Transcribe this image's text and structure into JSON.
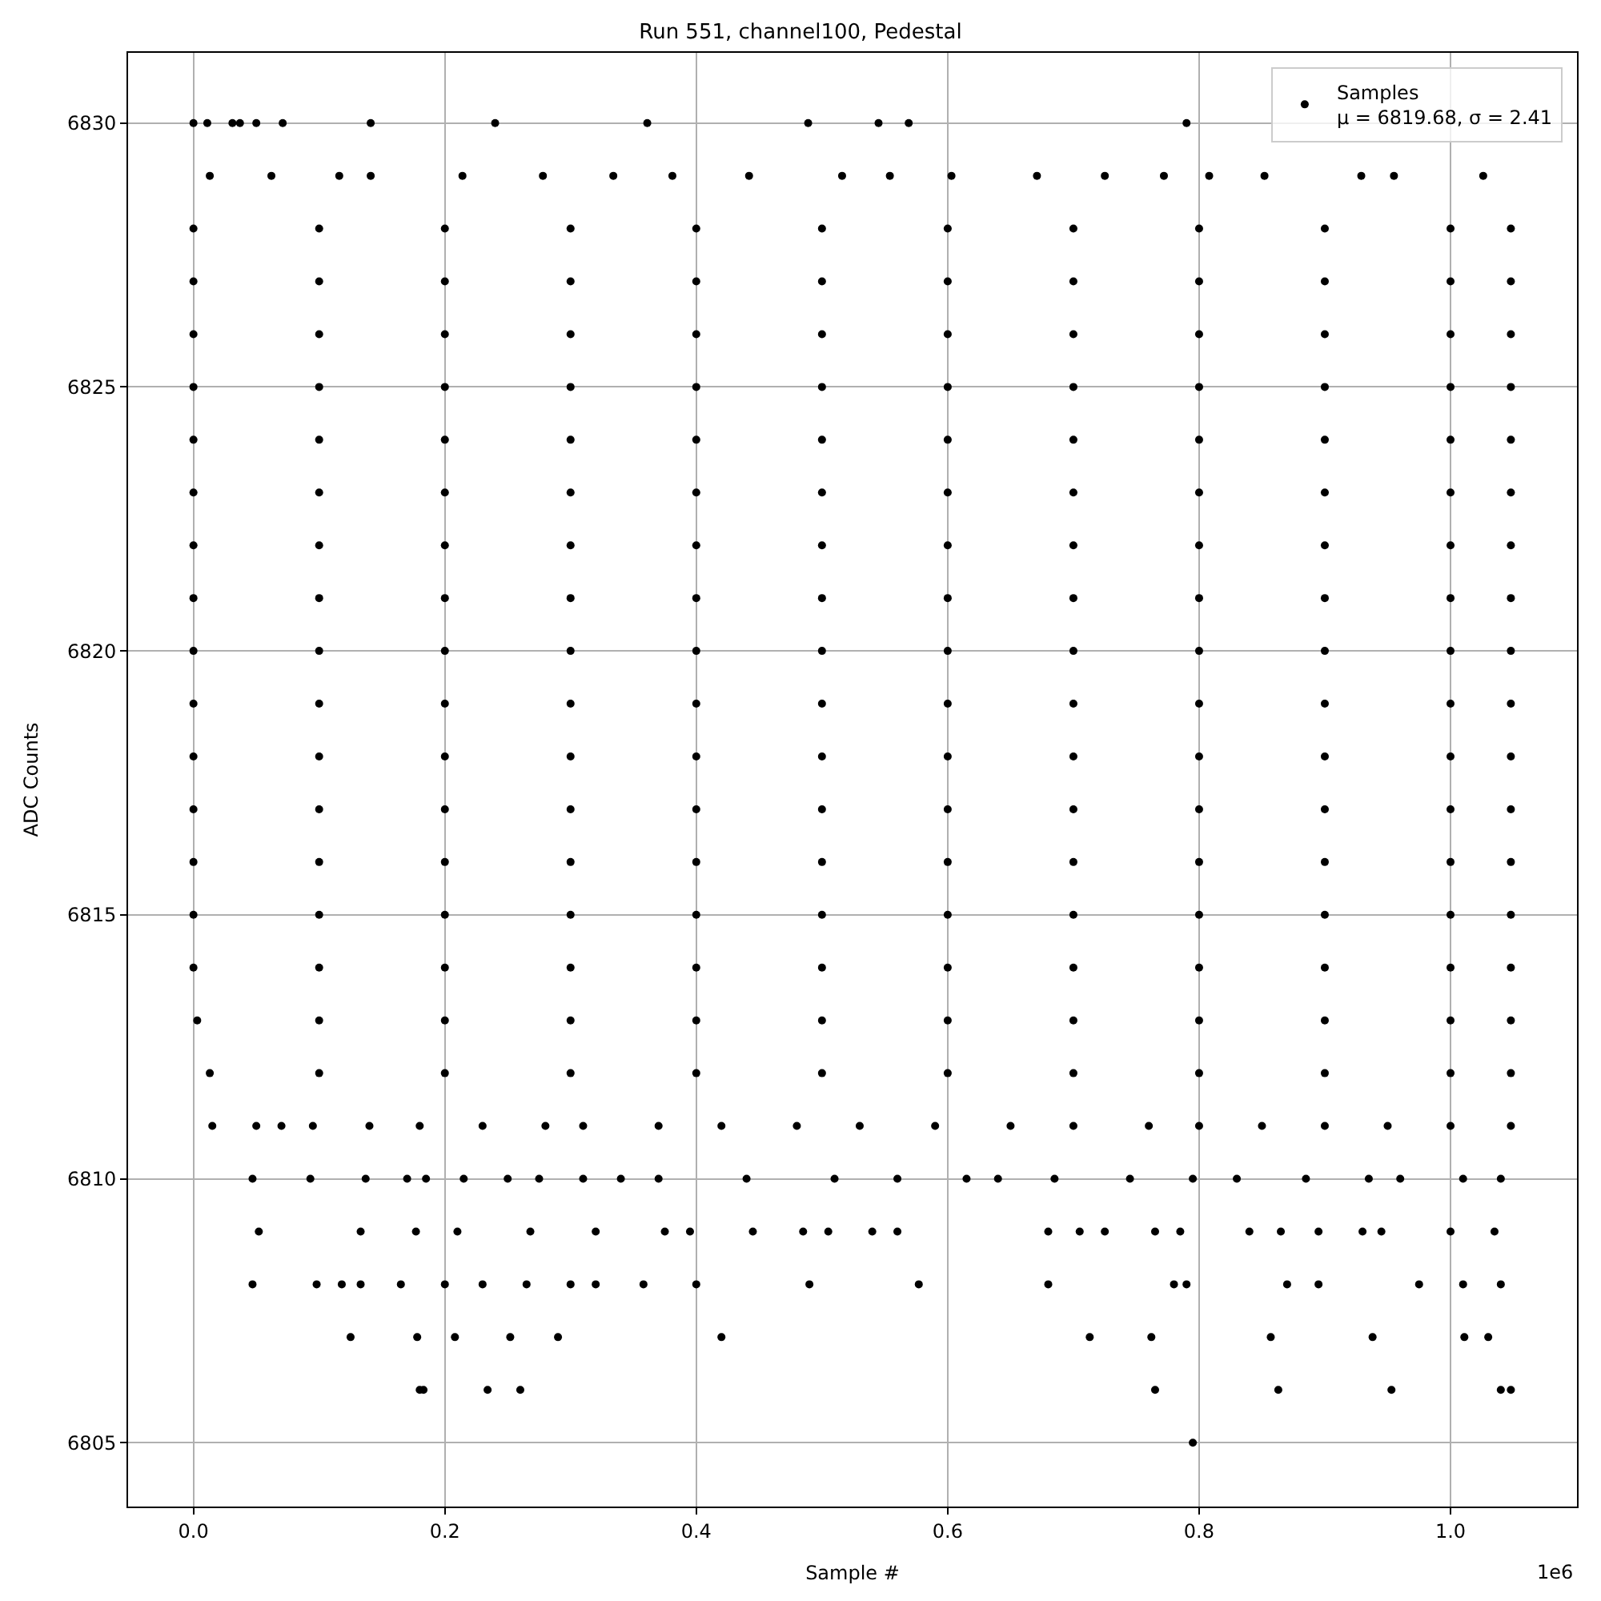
{
  "chart_data": {
    "type": "scatter",
    "title": "Run 551, channel100, Pedestal",
    "xlabel": "Sample #",
    "ylabel": "ADC Counts",
    "annotations": [
      "1e6"
    ],
    "xlim": [
      -0.052,
      1.1006
    ],
    "ylim": [
      6803.79,
      6831.33
    ],
    "xticks": [
      {
        "value": 0,
        "label": "0.0"
      },
      0.2,
      0.4,
      0.6,
      0.8,
      {
        "value": 1,
        "label": "1.0"
      }
    ],
    "yticks": [
      6805,
      6810,
      6815,
      6820,
      6825,
      6830
    ],
    "grid": true,
    "legend": "top right",
    "marker": "circle",
    "series": [
      {
        "name": "Samples\nμ = 6819.68, σ = 2.41",
        "color": "#000000",
        "x": [
          0,
          0.011,
          0.031,
          0.037,
          0.05,
          0.071,
          0.141,
          0.24,
          0.361,
          0.489,
          0.545,
          0.569,
          0.79,
          0.013,
          0.062,
          0.116,
          0.141,
          0.214,
          0.278,
          0.334,
          0.381,
          0.442,
          0.516,
          0.554,
          0.603,
          0.671,
          0.725,
          0.772,
          0.808,
          0.852,
          0.929,
          0.955,
          1.026,
          0,
          0.1,
          0.2,
          0.3,
          0.4,
          0.5,
          0.6,
          0.7,
          0.8,
          0.9,
          1,
          1.048,
          0,
          0.1,
          0.2,
          0.3,
          0.4,
          0.5,
          0.6,
          0.7,
          0.8,
          0.9,
          1,
          1.048,
          0,
          0.1,
          0.2,
          0.3,
          0.4,
          0.5,
          0.6,
          0.7,
          0.8,
          0.9,
          1,
          1.048,
          0,
          0.1,
          0.2,
          0.3,
          0.4,
          0.5,
          0.6,
          0.7,
          0.8,
          0.9,
          1,
          1.048,
          0,
          0.1,
          0.2,
          0.3,
          0.4,
          0.5,
          0.6,
          0.7,
          0.8,
          0.9,
          1,
          1.048,
          0,
          0.1,
          0.2,
          0.3,
          0.4,
          0.5,
          0.6,
          0.7,
          0.8,
          0.9,
          1,
          1.048,
          0,
          0.1,
          0.2,
          0.3,
          0.4,
          0.5,
          0.6,
          0.7,
          0.8,
          0.9,
          1,
          1.048,
          0,
          0.1,
          0.2,
          0.3,
          0.4,
          0.5,
          0.6,
          0.7,
          0.8,
          0.9,
          1,
          1.048,
          0,
          0.1,
          0.2,
          0.3,
          0.4,
          0.5,
          0.6,
          0.7,
          0.8,
          0.9,
          1,
          1.048,
          0,
          0.1,
          0.2,
          0.3,
          0.4,
          0.5,
          0.6,
          0.7,
          0.8,
          0.9,
          1,
          1.048,
          0,
          0.1,
          0.2,
          0.3,
          0.4,
          0.5,
          0.6,
          0.7,
          0.8,
          0.9,
          1,
          1.048,
          0,
          0.1,
          0.2,
          0.3,
          0.4,
          0.5,
          0.6,
          0.7,
          0.8,
          0.9,
          1,
          1.048,
          0,
          0.1,
          0.2,
          0.3,
          0.4,
          0.5,
          0.6,
          0.7,
          0.8,
          0.9,
          1,
          1.048,
          0,
          0.1,
          0.2,
          0.3,
          0.4,
          0.5,
          0.6,
          0.7,
          0.8,
          0.9,
          1,
          1.048,
          0,
          0.1,
          0.2,
          0.3,
          0.4,
          0.5,
          0.6,
          0.7,
          0.8,
          0.9,
          1,
          1.048,
          0.003,
          0.1,
          0.2,
          0.3,
          0.4,
          0.5,
          0.6,
          0.7,
          0.8,
          0.9,
          1,
          1.048,
          0.013,
          0.1,
          0.2,
          0.3,
          0.4,
          0.5,
          0.6,
          0.7,
          0.8,
          0.9,
          1,
          1.048,
          0.015,
          0.05,
          0.07,
          0.095,
          0.14,
          0.18,
          0.23,
          0.28,
          0.31,
          0.37,
          0.42,
          0.48,
          0.53,
          0.59,
          0.65,
          0.7,
          0.76,
          0.8,
          0.85,
          0.9,
          0.95,
          1,
          1.048,
          0.047,
          0.093,
          0.137,
          0.17,
          0.185,
          0.215,
          0.25,
          0.275,
          0.31,
          0.34,
          0.37,
          0.44,
          0.51,
          0.56,
          0.615,
          0.64,
          0.685,
          0.745,
          0.795,
          0.83,
          0.885,
          0.935,
          0.96,
          1.01,
          1.04,
          0.052,
          0.133,
          0.177,
          0.21,
          0.268,
          0.32,
          0.375,
          0.395,
          0.445,
          0.485,
          0.505,
          0.54,
          0.56,
          0.68,
          0.705,
          0.725,
          0.765,
          0.785,
          0.84,
          0.865,
          0.895,
          0.93,
          0.945,
          1,
          1.035,
          0.047,
          0.098,
          0.118,
          0.133,
          0.165,
          0.2,
          0.23,
          0.265,
          0.3,
          0.32,
          0.358,
          0.4,
          0.49,
          0.577,
          0.68,
          0.78,
          0.79,
          0.87,
          0.895,
          0.975,
          1.01,
          1.04,
          0.125,
          0.178,
          0.208,
          0.252,
          0.29,
          0.42,
          0.713,
          0.762,
          0.857,
          0.938,
          1.011,
          1.03,
          0.18,
          0.183,
          0.234,
          0.26,
          0.765,
          0.863,
          0.953,
          1.04,
          1.048,
          0.795
        ],
        "values": [
          6830,
          6830,
          6830,
          6830,
          6830,
          6830,
          6830,
          6830,
          6830,
          6830,
          6830,
          6830,
          6830,
          6829,
          6829,
          6829,
          6829,
          6829,
          6829,
          6829,
          6829,
          6829,
          6829,
          6829,
          6829,
          6829,
          6829,
          6829,
          6829,
          6829,
          6829,
          6829,
          6829,
          6828,
          6828,
          6828,
          6828,
          6828,
          6828,
          6828,
          6828,
          6828,
          6828,
          6828,
          6828,
          6827,
          6827,
          6827,
          6827,
          6827,
          6827,
          6827,
          6827,
          6827,
          6827,
          6827,
          6827,
          6826,
          6826,
          6826,
          6826,
          6826,
          6826,
          6826,
          6826,
          6826,
          6826,
          6826,
          6826,
          6825,
          6825,
          6825,
          6825,
          6825,
          6825,
          6825,
          6825,
          6825,
          6825,
          6825,
          6825,
          6824,
          6824,
          6824,
          6824,
          6824,
          6824,
          6824,
          6824,
          6824,
          6824,
          6824,
          6824,
          6823,
          6823,
          6823,
          6823,
          6823,
          6823,
          6823,
          6823,
          6823,
          6823,
          6823,
          6823,
          6822,
          6822,
          6822,
          6822,
          6822,
          6822,
          6822,
          6822,
          6822,
          6822,
          6822,
          6822,
          6821,
          6821,
          6821,
          6821,
          6821,
          6821,
          6821,
          6821,
          6821,
          6821,
          6821,
          6821,
          6820,
          6820,
          6820,
          6820,
          6820,
          6820,
          6820,
          6820,
          6820,
          6820,
          6820,
          6820,
          6819,
          6819,
          6819,
          6819,
          6819,
          6819,
          6819,
          6819,
          6819,
          6819,
          6819,
          6819,
          6818,
          6818,
          6818,
          6818,
          6818,
          6818,
          6818,
          6818,
          6818,
          6818,
          6818,
          6818,
          6817,
          6817,
          6817,
          6817,
          6817,
          6817,
          6817,
          6817,
          6817,
          6817,
          6817,
          6817,
          6816,
          6816,
          6816,
          6816,
          6816,
          6816,
          6816,
          6816,
          6816,
          6816,
          6816,
          6816,
          6815,
          6815,
          6815,
          6815,
          6815,
          6815,
          6815,
          6815,
          6815,
          6815,
          6815,
          6815,
          6814,
          6814,
          6814,
          6814,
          6814,
          6814,
          6814,
          6814,
          6814,
          6814,
          6814,
          6814,
          6813,
          6813,
          6813,
          6813,
          6813,
          6813,
          6813,
          6813,
          6813,
          6813,
          6813,
          6813,
          6812,
          6812,
          6812,
          6812,
          6812,
          6812,
          6812,
          6812,
          6812,
          6812,
          6812,
          6812,
          6811,
          6811,
          6811,
          6811,
          6811,
          6811,
          6811,
          6811,
          6811,
          6811,
          6811,
          6811,
          6811,
          6811,
          6811,
          6811,
          6811,
          6811,
          6811,
          6811,
          6811,
          6811,
          6811,
          6810,
          6810,
          6810,
          6810,
          6810,
          6810,
          6810,
          6810,
          6810,
          6810,
          6810,
          6810,
          6810,
          6810,
          6810,
          6810,
          6810,
          6810,
          6810,
          6810,
          6810,
          6810,
          6810,
          6810,
          6810,
          6809,
          6809,
          6809,
          6809,
          6809,
          6809,
          6809,
          6809,
          6809,
          6809,
          6809,
          6809,
          6809,
          6809,
          6809,
          6809,
          6809,
          6809,
          6809,
          6809,
          6809,
          6809,
          6809,
          6809,
          6809,
          6808,
          6808,
          6808,
          6808,
          6808,
          6808,
          6808,
          6808,
          6808,
          6808,
          6808,
          6808,
          6808,
          6808,
          6808,
          6808,
          6808,
          6808,
          6808,
          6808,
          6808,
          6808,
          6807,
          6807,
          6807,
          6807,
          6807,
          6807,
          6807,
          6807,
          6807,
          6807,
          6807,
          6807,
          6806,
          6806,
          6806,
          6806,
          6806,
          6806,
          6806,
          6806,
          6806,
          6805
        ]
      }
    ]
  }
}
